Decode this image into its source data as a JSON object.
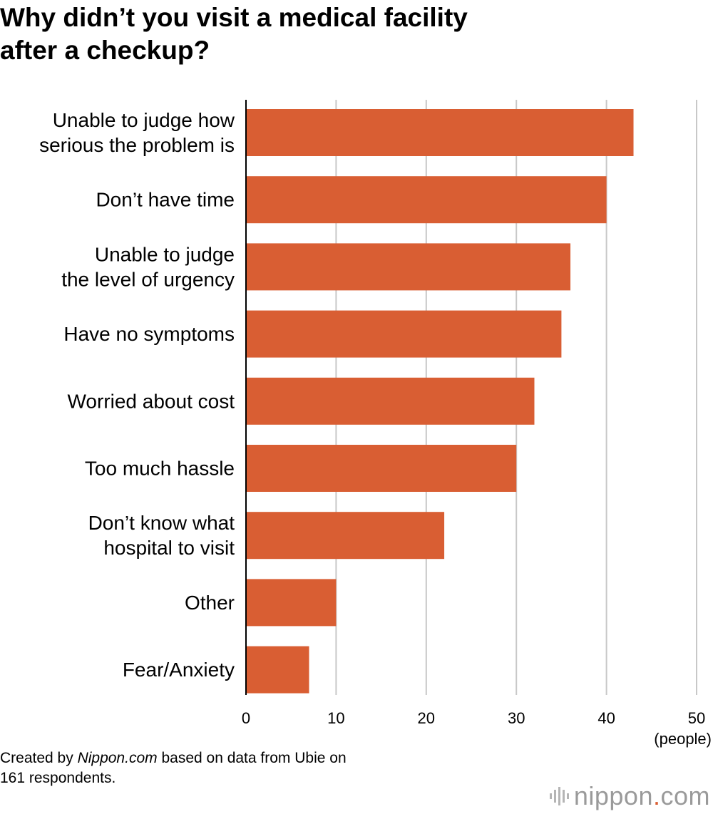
{
  "title_lines": [
    "Why didn’t you visit a medical facility",
    "after a checkup?"
  ],
  "chart_data": {
    "type": "bar",
    "orientation": "horizontal",
    "categories": [
      [
        "Unable to judge how",
        "serious the problem is"
      ],
      [
        "Don’t have time"
      ],
      [
        "Unable to judge",
        "the level of urgency"
      ],
      [
        "Have no symptoms"
      ],
      [
        "Worried about cost"
      ],
      [
        "Too much hassle"
      ],
      [
        "Don’t know what",
        "hospital to visit"
      ],
      [
        "Other"
      ],
      [
        "Fear/Anxiety"
      ]
    ],
    "values": [
      43,
      40,
      36,
      35,
      32,
      30,
      22,
      10,
      7
    ],
    "xlim": [
      0,
      50
    ],
    "ticks": [
      "0",
      "10",
      "20",
      "30",
      "40",
      "50"
    ],
    "unit_label": "(people)",
    "grid": true,
    "bar_color": "#d95e33"
  },
  "footnote": {
    "line1_prefix": "Created by ",
    "line1_source": "Nippon.com",
    "line1_suffix": " based on data from Ubie on",
    "line2": "161 respondents."
  },
  "brand": {
    "name": "nippon",
    "dot": ".",
    "tld": "com"
  }
}
